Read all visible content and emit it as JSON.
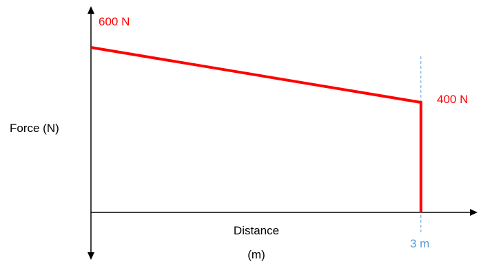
{
  "chart_data": {
    "type": "line",
    "title": "",
    "xlabel_line1": "Distance",
    "xlabel_line2": "(m)",
    "ylabel": "Force (N)",
    "series": [
      {
        "x": [
          0,
          3
        ],
        "y": [
          600,
          400
        ],
        "drop_to_zero_at_end": true
      }
    ],
    "xlim": [
      0,
      3.5
    ],
    "ylim": [
      0,
      700
    ],
    "annotations": {
      "start_value": "600 N",
      "end_value": "400 N",
      "end_x": "3 m"
    },
    "colors": {
      "line": "#ff0000",
      "axes": "#000000",
      "marker": "#5b9bd5"
    },
    "grid": false,
    "legend": "none"
  }
}
